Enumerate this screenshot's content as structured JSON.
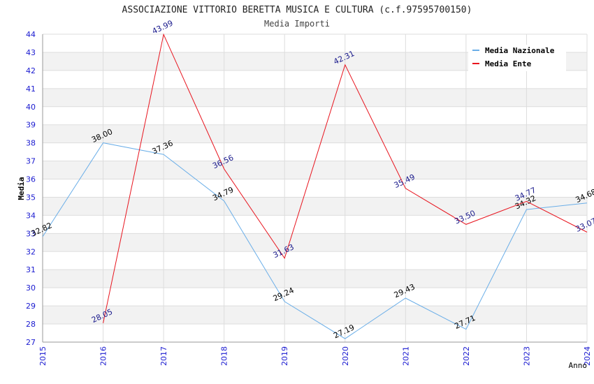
{
  "chart_data": {
    "type": "line",
    "title": "ASSOCIAZIONE VITTORIO BERETTA MUSICA E CULTURA (c.f.97595700150)",
    "subtitle": "Media Importi",
    "xlabel": "Anno",
    "ylabel": "Media",
    "x": [
      "2015",
      "2016",
      "2017",
      "2018",
      "2019",
      "2020",
      "2021",
      "2022",
      "2023",
      "2024"
    ],
    "ylim": [
      27,
      44
    ],
    "yticks": [
      "27",
      "28",
      "29",
      "30",
      "31",
      "32",
      "33",
      "34",
      "35",
      "36",
      "37",
      "38",
      "39",
      "40",
      "41",
      "42",
      "43",
      "44"
    ],
    "legend_position": "top-right",
    "series": [
      {
        "name": "Media Nazionale",
        "color": "#6aaee8",
        "label_color": "#000000",
        "values": [
          32.82,
          38.0,
          37.36,
          34.79,
          29.24,
          27.19,
          29.43,
          27.71,
          34.32,
          34.68
        ],
        "labels": [
          "32.82",
          "38.00",
          "37.36",
          "34.79",
          "29.24",
          "27.19",
          "29.43",
          "27.71",
          "34.32",
          "34.68"
        ]
      },
      {
        "name": "Media Ente",
        "color": "#e8141e",
        "label_color": "#1a1a8c",
        "values": [
          null,
          28.05,
          43.99,
          36.56,
          31.63,
          42.31,
          35.49,
          33.5,
          34.77,
          33.07
        ],
        "labels": [
          null,
          "28.05",
          "43.99",
          "36.56",
          "31.63",
          "42.31",
          "35.49",
          "33.50",
          "34.77",
          "33.07"
        ]
      }
    ],
    "colors": {
      "band": "#f2f2f2",
      "grid": "#dddddd",
      "axis": "#999999",
      "tick_label": "#1a1ad0",
      "title": "#222222",
      "subtitle": "#444444"
    }
  }
}
